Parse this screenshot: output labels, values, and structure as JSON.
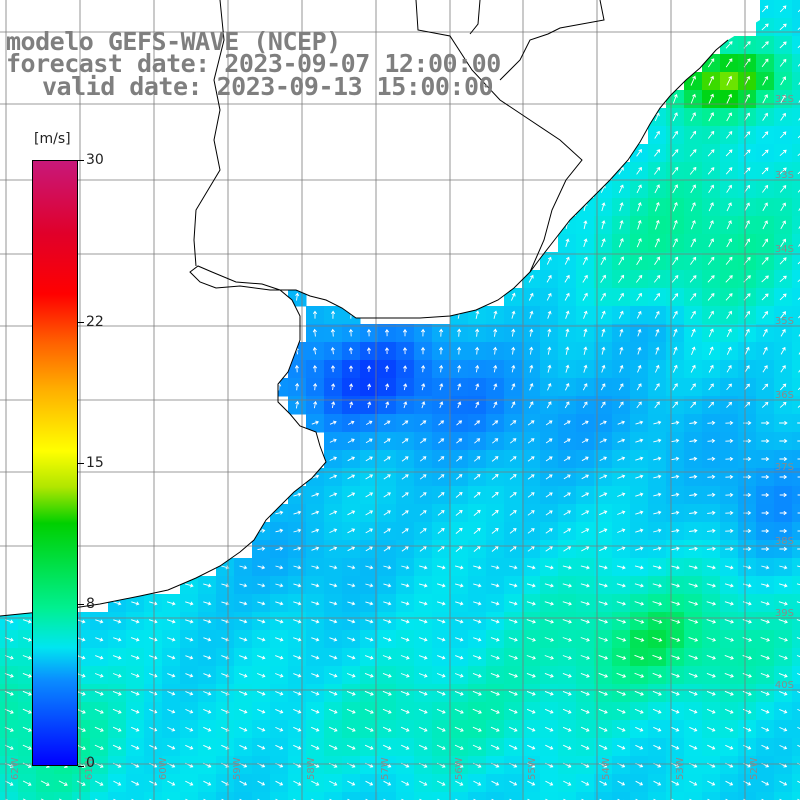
{
  "title": {
    "line1": "modelo GEFS-WAVE (NCEP)",
    "line2": "forecast date: 2023-09-07 12:00:00",
    "line3": "valid date: 2023-09-13 15:00:00"
  },
  "colorbar": {
    "units": "[m/s]",
    "min": 0,
    "max": 30,
    "tick_labels": [
      "30",
      "22",
      "15",
      "8",
      "0"
    ],
    "tick_values": [
      30,
      22,
      15,
      8,
      0
    ],
    "gradient_stops": [
      {
        "value": 0,
        "color": "#0000ff"
      },
      {
        "value": 4,
        "color": "#0a8cff"
      },
      {
        "value": 8,
        "color": "#00e6f0"
      },
      {
        "value": 11,
        "color": "#00f090"
      },
      {
        "value": 13,
        "color": "#00d000"
      },
      {
        "value": 15,
        "color": "#ffff00"
      },
      {
        "value": 18,
        "color": "#ffb000"
      },
      {
        "value": 21,
        "color": "#ff6000"
      },
      {
        "value": 23,
        "color": "#ff0000"
      },
      {
        "value": 26,
        "color": "#e0002a"
      },
      {
        "value": 30,
        "color": "#c8187a"
      }
    ]
  },
  "map": {
    "variable": "wind speed and direction",
    "longitude_range": [
      -63,
      -52
    ],
    "latitude_range": [
      -41,
      -30
    ],
    "lat_labels": [
      "32S",
      "33S",
      "34S",
      "35S",
      "36S",
      "37S",
      "38S",
      "39S",
      "40S"
    ],
    "lon_labels": [
      "62W",
      "61W",
      "60W",
      "59W",
      "58W",
      "57W",
      "56W",
      "55W",
      "54W",
      "53W",
      "52W"
    ],
    "land_color": "#ffffff",
    "coast_color": "#000000",
    "grid_color": "#7a7a7a",
    "arrow_color": "#ffffff",
    "label_color": "#8a8a8a"
  }
}
